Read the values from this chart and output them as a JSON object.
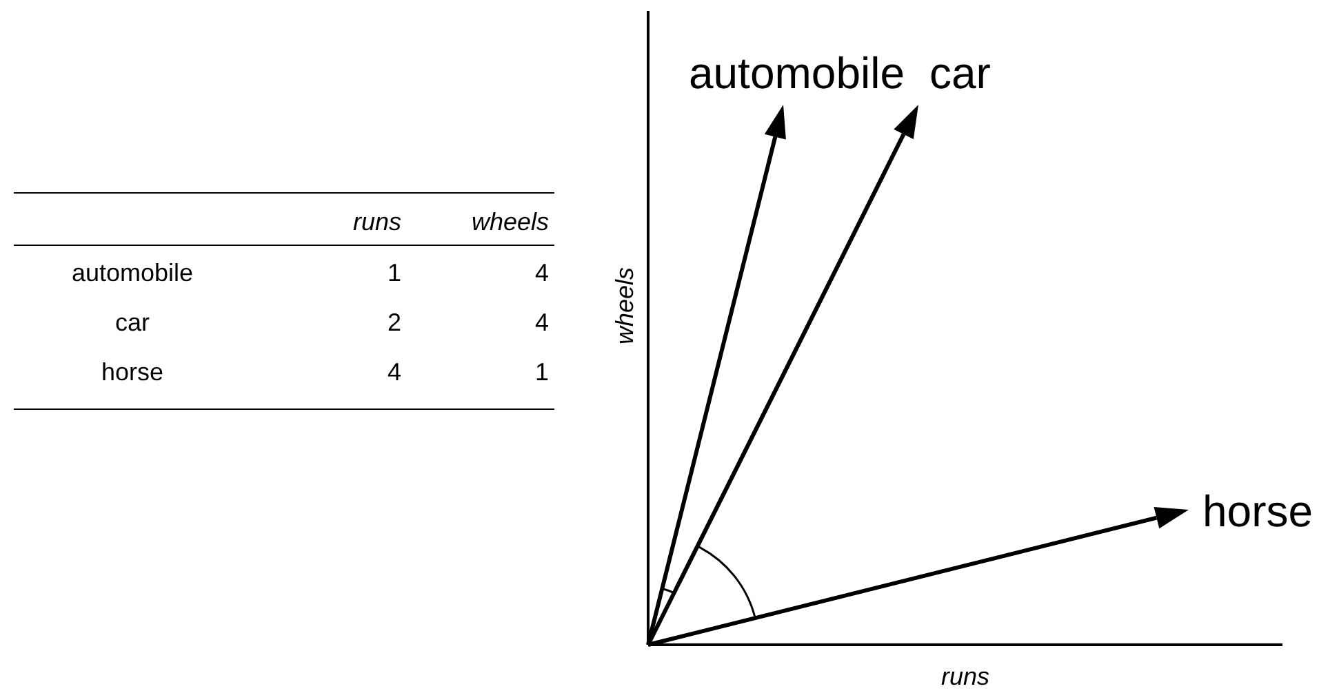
{
  "chart_data": {
    "type": "other",
    "categories": [
      "automobile",
      "car",
      "horse"
    ],
    "series": [
      {
        "name": "runs",
        "values": [
          1,
          2,
          4
        ]
      },
      {
        "name": "wheels",
        "values": [
          4,
          4,
          1
        ]
      }
    ],
    "xlabel": "runs",
    "ylabel": "wheels",
    "data_labels": true
  }
}
